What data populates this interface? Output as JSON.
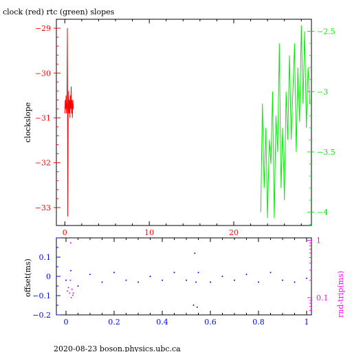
{
  "page": {
    "title": "clock (red) rtc (green) slopes",
    "footer": "2020-08-23  boson.physics.ubc.ca"
  },
  "colors": {
    "red": "#ff0000",
    "green": "#00ee00",
    "blue": "#0000ff",
    "magenta": "#ff00ff",
    "black": "#000000"
  },
  "chart_data": [
    {
      "type": "line",
      "title": "clock (red) rtc (green) slopes",
      "ylabel": "clockslope",
      "xlim": [
        -1,
        29.2
      ],
      "ylim": [
        -33.4,
        -28.8
      ],
      "x_ticks": [
        "0",
        "10",
        "20"
      ],
      "y_ticks": [
        "-29",
        "-30",
        "-31",
        "-32",
        "-33"
      ],
      "y2lim": [
        -4.11,
        -2.4
      ],
      "y2_ticks": [
        "-2.5",
        "-3",
        "-3.5",
        "-4"
      ],
      "grid": false,
      "series": [
        {
          "axis": "left",
          "color": "#ff0000",
          "x": [
            0.0,
            0.05,
            0.1,
            0.15,
            0.2,
            0.25,
            0.3,
            0.35,
            0.4,
            0.45,
            0.5,
            0.55,
            0.6,
            0.65,
            0.7,
            0.75,
            0.8,
            0.85,
            0.9,
            0.95,
            1.0
          ],
          "y": [
            -30.9,
            -30.6,
            -30.8,
            -30.5,
            -30.9,
            -30.7,
            -29.0,
            -33.2,
            -30.8,
            -30.4,
            -30.9,
            -30.6,
            -31.0,
            -30.5,
            -30.8,
            -30.3,
            -30.9,
            -30.6,
            -31.0,
            -30.6,
            -30.8
          ]
        },
        {
          "axis": "right",
          "color": "#00ee00",
          "x": [
            23.2,
            23.4,
            23.6,
            23.8,
            24.0,
            24.2,
            24.4,
            24.6,
            24.8,
            25.0,
            25.2,
            25.4,
            25.6,
            25.8,
            26.0,
            26.2,
            26.4,
            26.6,
            26.8,
            27.0,
            27.2,
            27.4,
            27.6,
            27.8,
            28.0,
            28.2,
            28.4,
            28.6,
            28.8,
            29.0
          ],
          "y": [
            -4.0,
            -3.1,
            -3.8,
            -3.3,
            -4.05,
            -3.4,
            -3.6,
            -3.0,
            -4.05,
            -3.2,
            -3.5,
            -2.6,
            -3.8,
            -3.3,
            -3.9,
            -3.0,
            -3.4,
            -2.7,
            -3.4,
            -3.0,
            -2.6,
            -3.5,
            -2.8,
            -3.25,
            -2.45,
            -3.1,
            -2.5,
            -3.3,
            -2.8,
            -3.1
          ]
        }
      ]
    },
    {
      "type": "scatter",
      "ylabel": "offset(ms)",
      "y2label": "rnd-trip(ms)",
      "xlim": [
        -0.04,
        1.02
      ],
      "ylim": [
        -0.2,
        0.2
      ],
      "x_ticks": [
        "0",
        "0.2",
        "0.4",
        "0.6",
        "0.8",
        "1"
      ],
      "y_ticks": [
        "0.1",
        "0",
        "-0.1",
        "-0.2"
      ],
      "y2_ticks": [
        "1",
        "0.1"
      ],
      "y2_scale": "log",
      "y2lim": [
        0.05,
        1.1
      ],
      "grid": false,
      "series": [
        {
          "axis": "left",
          "color": "#0000ff",
          "x": [
            0.0,
            0.02,
            0.05,
            0.1,
            0.15,
            0.2,
            0.25,
            0.3,
            0.35,
            0.4,
            0.45,
            0.5,
            0.53,
            0.535,
            0.54,
            0.545,
            0.55,
            0.6,
            0.65,
            0.7,
            0.75,
            0.8,
            0.85,
            0.9,
            0.95,
            1.0
          ],
          "y": [
            -0.02,
            0.03,
            -0.05,
            0.01,
            -0.03,
            0.02,
            -0.02,
            -0.03,
            0.0,
            -0.02,
            0.02,
            -0.02,
            -0.15,
            0.12,
            -0.03,
            -0.16,
            0.02,
            -0.03,
            0.0,
            -0.02,
            0.01,
            -0.03,
            0.02,
            -0.02,
            -0.03,
            -0.01
          ]
        },
        {
          "axis": "right",
          "color": "#ff00ff",
          "x": [
            0.005,
            0.01,
            0.015,
            0.018,
            0.02,
            0.022,
            0.025,
            0.028,
            0.03
          ],
          "y": [
            0.13,
            0.15,
            0.12,
            0.2,
            0.9,
            0.1,
            0.14,
            0.11,
            0.12
          ]
        }
      ]
    }
  ]
}
